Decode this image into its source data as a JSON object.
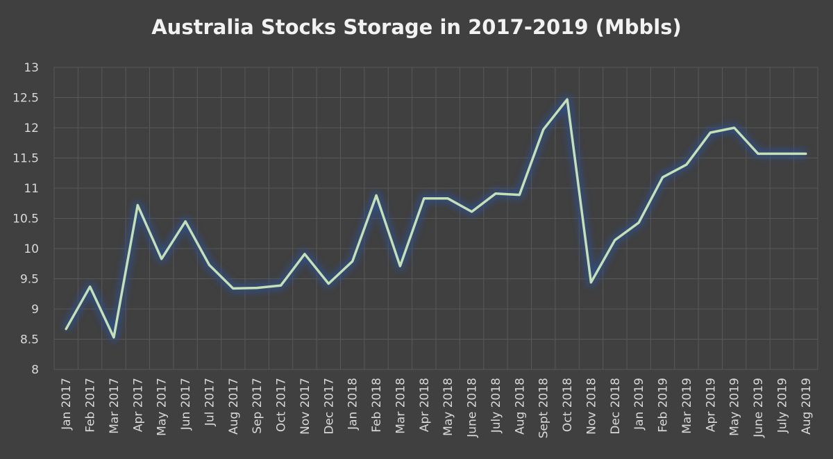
{
  "chart_data": {
    "type": "line",
    "title": "Australia Stocks Storage in 2017-2019 (Mbbls)",
    "xlabel": "",
    "ylabel": "",
    "ylim": [
      8,
      13
    ],
    "yticks": [
      "8",
      "8.5",
      "9",
      "9.5",
      "10",
      "10.5",
      "11",
      "11.5",
      "12",
      "12.5",
      "13"
    ],
    "grid": true,
    "legend": "none",
    "categories": [
      "Jan 2017",
      "Feb 2017",
      "Mar 2017",
      "Apr 2017",
      "May 2017",
      "Jun 2017",
      "Jul 2017",
      "Aug 2017",
      "Sep 2017",
      "Oct 2017",
      "Nov 2017",
      "Dec 2017",
      "Jan 2018",
      "Feb 2018",
      "Mar 2018",
      "Apr 2018",
      "May 2018",
      "June 2018",
      "July 2018",
      "Aug 2018",
      "Sept 2018",
      "Oct 2018",
      "Nov 2018",
      "Dec 2018",
      "Jan 2019",
      "Feb 2019",
      "Mar 2019",
      "Apr 2019",
      "May 2019",
      "June 2019",
      "July 2019",
      "Aug 2019"
    ],
    "series": [
      {
        "values": [
          8.67,
          9.37,
          8.53,
          10.72,
          9.83,
          10.45,
          9.73,
          9.34,
          9.35,
          9.39,
          9.91,
          9.42,
          9.79,
          10.88,
          9.71,
          10.83,
          10.83,
          10.61,
          10.91,
          10.89,
          11.97,
          12.47,
          9.44,
          10.14,
          10.43,
          11.18,
          11.39,
          11.92,
          12.0,
          11.57,
          11.57,
          11.57
        ]
      }
    ],
    "colors": {
      "background": "#404040",
      "line": "#c6e0b4",
      "glow": "#2f4f8a",
      "grid": "#595959",
      "text": "#d9d9d9",
      "title": "#f2f2f2"
    }
  }
}
